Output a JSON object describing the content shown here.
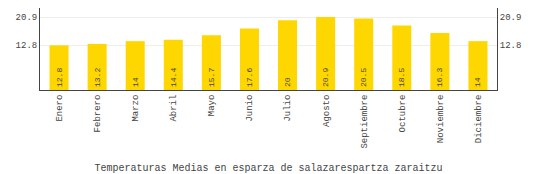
{
  "chart_data": {
    "type": "bar",
    "title": "Temperaturas Medias en esparza de salazarespartza zaraitzu",
    "categories": [
      "Enero",
      "Febrero",
      "Marzo",
      "Abril",
      "Mayo",
      "Junio",
      "Julio",
      "Agosto",
      "Septiembre",
      "Octubre",
      "Noviembre",
      "Diciembre"
    ],
    "values": [
      12.8,
      13.2,
      14.0,
      14.4,
      15.7,
      17.6,
      20.0,
      20.9,
      20.5,
      18.5,
      16.3,
      14.0
    ],
    "color": "#FFD700",
    "ylim": [
      0,
      23.5
    ],
    "yticks": [
      12.8,
      20.9
    ],
    "y2lim": [
      0,
      23.5
    ],
    "y2ticks": [
      12.8,
      20.9
    ],
    "grid": true,
    "data_labels": true
  }
}
